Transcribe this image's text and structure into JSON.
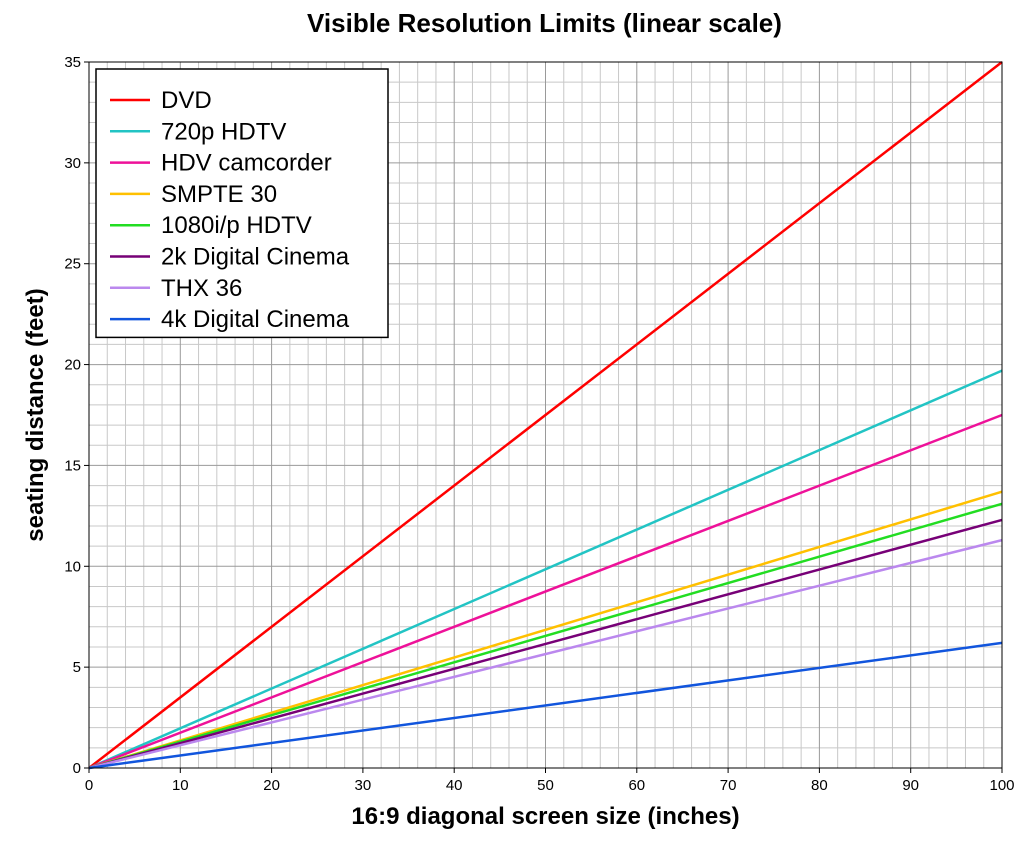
{
  "chart_data": {
    "type": "line",
    "title": "Visible Resolution Limits (linear scale)",
    "xlabel": "16:9 diagonal screen size (inches)",
    "ylabel": "seating distance (feet)",
    "xlim": [
      0,
      100
    ],
    "ylim": [
      0,
      35
    ],
    "xticks": [
      0,
      10,
      20,
      30,
      40,
      50,
      60,
      70,
      80,
      90,
      100
    ],
    "yticks": [
      0,
      5,
      10,
      15,
      20,
      25,
      30,
      35
    ],
    "grid": true,
    "legend_position": "top-left",
    "series": [
      {
        "name": "DVD",
        "color": "#ff0000",
        "x": [
          0,
          100
        ],
        "y": [
          0,
          35.0
        ]
      },
      {
        "name": "720p HDTV",
        "color": "#22c4c4",
        "x": [
          0,
          100
        ],
        "y": [
          0,
          19.7
        ]
      },
      {
        "name": "HDV camcorder",
        "color": "#ee1199",
        "x": [
          0,
          100
        ],
        "y": [
          0,
          17.5
        ]
      },
      {
        "name": "SMPTE 30",
        "color": "#ffc000",
        "x": [
          0,
          100
        ],
        "y": [
          0,
          13.7
        ]
      },
      {
        "name": "1080i/p HDTV",
        "color": "#22dd22",
        "x": [
          0,
          100
        ],
        "y": [
          0,
          13.1
        ]
      },
      {
        "name": "2k Digital Cinema",
        "color": "#770077",
        "x": [
          0,
          100
        ],
        "y": [
          0,
          12.3
        ]
      },
      {
        "name": "THX 36",
        "color": "#bb88ee",
        "x": [
          0,
          100
        ],
        "y": [
          0,
          11.3
        ]
      },
      {
        "name": "4k Digital Cinema",
        "color": "#1155dd",
        "x": [
          0,
          100
        ],
        "y": [
          0,
          6.2
        ]
      }
    ]
  }
}
